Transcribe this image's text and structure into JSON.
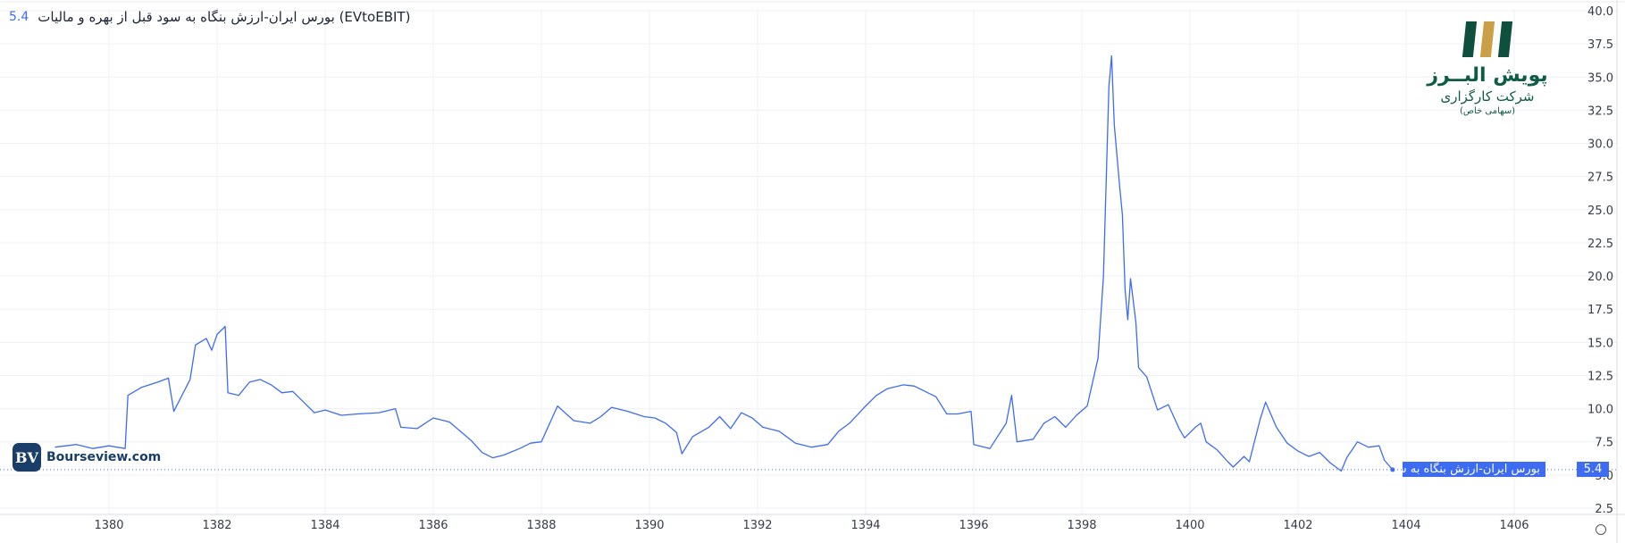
{
  "header": {
    "title": "بورس ایران-ارزش بنگاه به سود قبل از بهره و مالیات (EVtoEBIT)",
    "last_value": "5.4"
  },
  "logo": {
    "name": "پویش البــرز",
    "subtitle": "شرکت کارگزاری",
    "small": "(سهامی خاص)"
  },
  "watermark": {
    "badge": "BV",
    "text": "Bourseview.com"
  },
  "series_tag": "بورس ایران-ارزش بنگاه به سود قبل...",
  "value_tag": "5.4",
  "colors": {
    "line": "#3d6cf2",
    "grid": "#eef0f4",
    "text": "#383c48"
  },
  "chart_data": {
    "type": "line",
    "title": "بورس ایران-ارزش بنگاه به سود قبل از بهره و مالیات (EVtoEBIT)",
    "xlabel": "",
    "ylabel": "",
    "ylim": [
      2.5,
      40
    ],
    "xlim": [
      1379,
      1409
    ],
    "y_ticks": [
      "2.5",
      "5.0",
      "7.5",
      "10.0",
      "12.5",
      "15.0",
      "17.5",
      "20.0",
      "22.5",
      "25.0",
      "27.5",
      "30.0",
      "32.5",
      "35.0",
      "37.5",
      "40.0"
    ],
    "x_ticks": [
      "1380",
      "1382",
      "1384",
      "1386",
      "1388",
      "1390",
      "1392",
      "1394",
      "1396",
      "1398",
      "1400",
      "1402",
      "1404",
      "1406"
    ],
    "grid": true,
    "last_value": 5.4,
    "series": [
      {
        "values": [
          [
            1379.0,
            7.1
          ],
          [
            1379.4,
            7.3
          ],
          [
            1379.7,
            7.0
          ],
          [
            1380.0,
            7.2
          ],
          [
            1380.3,
            7.0
          ],
          [
            1380.35,
            11.0
          ],
          [
            1380.6,
            11.6
          ],
          [
            1380.9,
            12.0
          ],
          [
            1381.1,
            12.3
          ],
          [
            1381.2,
            9.8
          ],
          [
            1381.35,
            11.0
          ],
          [
            1381.5,
            12.2
          ],
          [
            1381.6,
            14.8
          ],
          [
            1381.8,
            15.3
          ],
          [
            1381.9,
            14.4
          ],
          [
            1382.0,
            15.6
          ],
          [
            1382.15,
            16.2
          ],
          [
            1382.2,
            11.2
          ],
          [
            1382.4,
            11.0
          ],
          [
            1382.6,
            12.0
          ],
          [
            1382.8,
            12.2
          ],
          [
            1383.0,
            11.8
          ],
          [
            1383.2,
            11.2
          ],
          [
            1383.4,
            11.3
          ],
          [
            1383.6,
            10.5
          ],
          [
            1383.8,
            9.7
          ],
          [
            1384.0,
            9.9
          ],
          [
            1384.3,
            9.5
          ],
          [
            1384.6,
            9.6
          ],
          [
            1385.0,
            9.7
          ],
          [
            1385.3,
            10.0
          ],
          [
            1385.4,
            8.6
          ],
          [
            1385.7,
            8.5
          ],
          [
            1386.0,
            9.3
          ],
          [
            1386.3,
            9.0
          ],
          [
            1386.5,
            8.3
          ],
          [
            1386.7,
            7.6
          ],
          [
            1386.9,
            6.7
          ],
          [
            1387.1,
            6.3
          ],
          [
            1387.3,
            6.5
          ],
          [
            1387.6,
            7.0
          ],
          [
            1387.8,
            7.4
          ],
          [
            1388.0,
            7.5
          ],
          [
            1388.3,
            10.2
          ],
          [
            1388.6,
            9.1
          ],
          [
            1388.9,
            8.9
          ],
          [
            1389.1,
            9.4
          ],
          [
            1389.3,
            10.1
          ],
          [
            1389.6,
            9.8
          ],
          [
            1389.9,
            9.4
          ],
          [
            1390.1,
            9.3
          ],
          [
            1390.3,
            8.9
          ],
          [
            1390.5,
            8.2
          ],
          [
            1390.6,
            6.6
          ],
          [
            1390.8,
            7.9
          ],
          [
            1391.1,
            8.6
          ],
          [
            1391.3,
            9.4
          ],
          [
            1391.5,
            8.5
          ],
          [
            1391.7,
            9.7
          ],
          [
            1391.9,
            9.3
          ],
          [
            1392.1,
            8.6
          ],
          [
            1392.4,
            8.3
          ],
          [
            1392.7,
            7.4
          ],
          [
            1393.0,
            7.1
          ],
          [
            1393.3,
            7.3
          ],
          [
            1393.5,
            8.3
          ],
          [
            1393.7,
            8.9
          ],
          [
            1394.0,
            10.2
          ],
          [
            1394.2,
            11.0
          ],
          [
            1394.4,
            11.5
          ],
          [
            1394.7,
            11.8
          ],
          [
            1394.9,
            11.7
          ],
          [
            1395.1,
            11.3
          ],
          [
            1395.3,
            10.9
          ],
          [
            1395.5,
            9.6
          ],
          [
            1395.7,
            9.6
          ],
          [
            1395.95,
            9.8
          ],
          [
            1396.0,
            7.3
          ],
          [
            1396.3,
            7.0
          ],
          [
            1396.6,
            8.9
          ],
          [
            1396.7,
            11.0
          ],
          [
            1396.8,
            7.5
          ],
          [
            1397.1,
            7.7
          ],
          [
            1397.3,
            8.9
          ],
          [
            1397.5,
            9.4
          ],
          [
            1397.7,
            8.6
          ],
          [
            1397.9,
            9.5
          ],
          [
            1398.1,
            10.2
          ],
          [
            1398.3,
            13.8
          ],
          [
            1398.4,
            20.0
          ],
          [
            1398.5,
            34.3
          ],
          [
            1398.55,
            36.6
          ],
          [
            1398.6,
            31.4
          ],
          [
            1398.7,
            26.7
          ],
          [
            1398.75,
            24.6
          ],
          [
            1398.8,
            19.0
          ],
          [
            1398.85,
            16.7
          ],
          [
            1398.9,
            19.8
          ],
          [
            1399.0,
            16.5
          ],
          [
            1399.05,
            13.1
          ],
          [
            1399.2,
            12.4
          ],
          [
            1399.4,
            9.9
          ],
          [
            1399.6,
            10.3
          ],
          [
            1399.8,
            8.5
          ],
          [
            1399.9,
            7.8
          ],
          [
            1400.1,
            8.6
          ],
          [
            1400.2,
            8.9
          ],
          [
            1400.3,
            7.5
          ],
          [
            1400.5,
            6.9
          ],
          [
            1400.7,
            6.0
          ],
          [
            1400.8,
            5.6
          ],
          [
            1401.0,
            6.4
          ],
          [
            1401.1,
            6.0
          ],
          [
            1401.3,
            9.2
          ],
          [
            1401.4,
            10.5
          ],
          [
            1401.6,
            8.6
          ],
          [
            1401.8,
            7.4
          ],
          [
            1402.0,
            6.8
          ],
          [
            1402.2,
            6.4
          ],
          [
            1402.4,
            6.7
          ],
          [
            1402.6,
            5.9
          ],
          [
            1402.8,
            5.3
          ],
          [
            1402.9,
            6.3
          ],
          [
            1403.1,
            7.5
          ],
          [
            1403.3,
            7.1
          ],
          [
            1403.5,
            7.2
          ],
          [
            1403.6,
            6.1
          ],
          [
            1403.75,
            5.4
          ]
        ]
      }
    ]
  }
}
